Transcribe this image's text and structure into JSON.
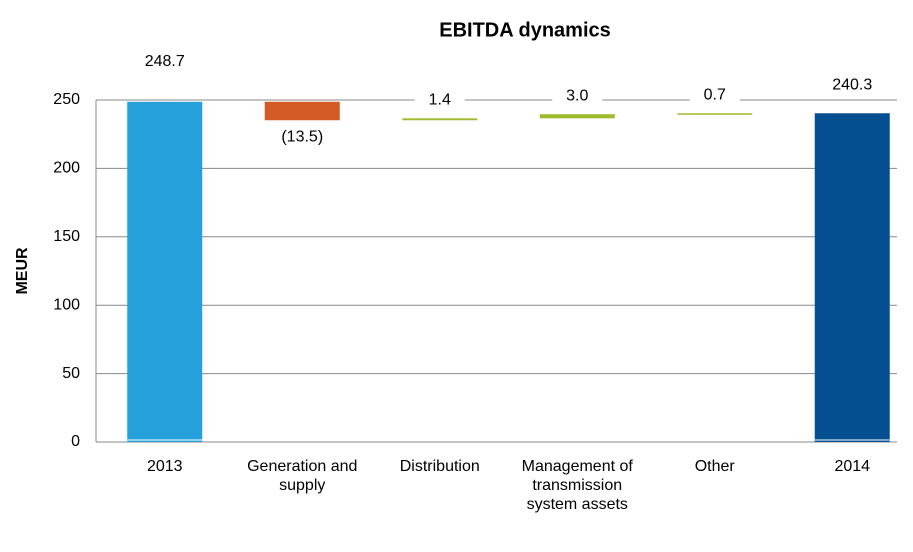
{
  "chart_data": {
    "type": "waterfall",
    "title": "EBITDA dynamics",
    "y_label": "MEUR",
    "categories": [
      "2013",
      "Generation and supply",
      "Distribution",
      "Management of transmission system assets",
      "Other",
      "2014"
    ],
    "values": [
      248.7,
      -13.5,
      1.4,
      3.0,
      0.7,
      240.3
    ],
    "value_labels": [
      "248.7",
      "(13.5)",
      "1.4",
      "3.0",
      "0.7",
      "240.3"
    ],
    "colors": [
      "#25a0da",
      "#d35a24",
      "#9dbb2d",
      "#9dbb2d",
      "#9dbb2d",
      "#034f91"
    ],
    "ylim": [
      0,
      250
    ],
    "yticks": [
      0,
      50,
      100,
      150,
      200,
      250
    ],
    "grid": true
  }
}
